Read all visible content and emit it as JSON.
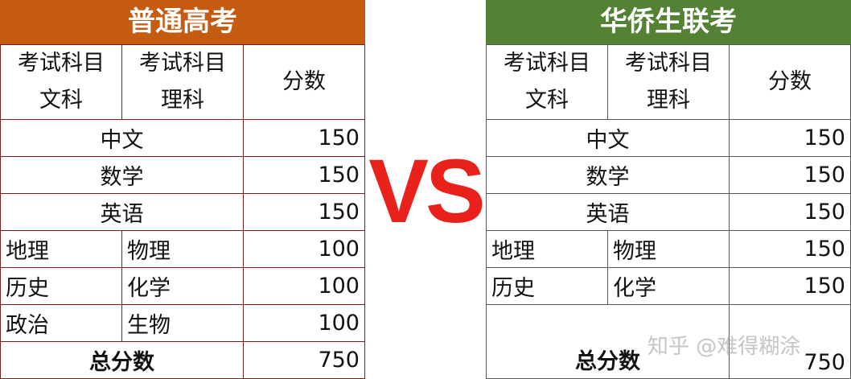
{
  "colors": {
    "left_header": "#C55A11",
    "right_header": "#548235",
    "vs": "#e8221b"
  },
  "left": {
    "title": "普通高考",
    "headers": [
      "考试科目文科",
      "考试科目理科",
      "分数"
    ],
    "h1a": "考试科目",
    "h1b": "文科",
    "h2a": "考试科目",
    "h2b": "理科",
    "h3": "分数",
    "rows": [
      {
        "subject": "中文",
        "score": "150"
      },
      {
        "subject": "数学",
        "score": "150"
      },
      {
        "subject": "英语",
        "score": "150"
      },
      {
        "arts": "地理",
        "science": "物理",
        "score": "100"
      },
      {
        "arts": "历史",
        "science": "化学",
        "score": "100"
      },
      {
        "arts": "政治",
        "science": "生物",
        "score": "100"
      }
    ],
    "total_label": "总分数",
    "total": "750"
  },
  "vs": "VS",
  "right": {
    "title": "华侨生联考",
    "h1a": "考试科目",
    "h1b": "文科",
    "h2a": "考试科目",
    "h2b": "理科",
    "h3": "分数",
    "rows": [
      {
        "subject": "中文",
        "score": "150"
      },
      {
        "subject": "数学",
        "score": "150"
      },
      {
        "subject": "英语",
        "score": "150"
      },
      {
        "arts": "地理",
        "science": "物理",
        "score": "150"
      },
      {
        "arts": "历史",
        "science": "化学",
        "score": "150"
      }
    ],
    "total_label": "总分数",
    "total": "750"
  },
  "watermark": "知乎 @难得糊涂"
}
